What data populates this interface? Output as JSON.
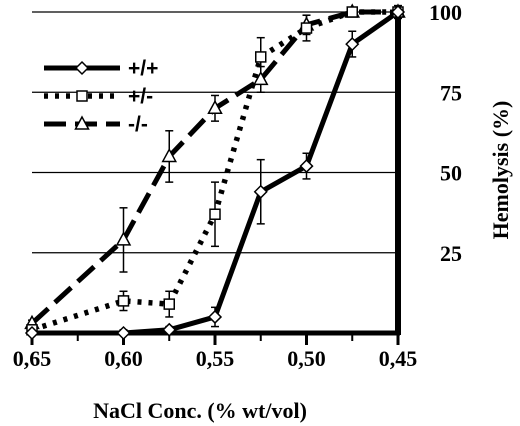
{
  "chart_data": {
    "type": "line",
    "xlabel": "NaCl Conc. (% wt/vol)",
    "ylabel": "Hemolysis (%)",
    "x_ticks": [
      "0,65",
      "0,60",
      "0,55",
      "0,50",
      "0,45"
    ],
    "x_tick_values": [
      0.65,
      0.6,
      0.55,
      0.5,
      0.45
    ],
    "y_ticks": [
      "25",
      "50",
      "75",
      "100"
    ],
    "y_tick_values": [
      25,
      50,
      75,
      100
    ],
    "xlim": [
      0.65,
      0.45
    ],
    "ylim": [
      0,
      100
    ],
    "x_reversed": true,
    "grid": "horizontal",
    "legend_position": "top-left",
    "series": [
      {
        "name": "+/+",
        "line_style": "solid",
        "marker": "diamond",
        "x": [
          0.65,
          0.6,
          0.575,
          0.55,
          0.525,
          0.5,
          0.475,
          0.45
        ],
        "y": [
          0,
          0,
          1,
          5,
          44,
          52,
          90,
          100
        ],
        "error": [
          0,
          1,
          1,
          3,
          10,
          4,
          4,
          2
        ]
      },
      {
        "name": "+/-",
        "line_style": "dotted",
        "marker": "square",
        "x": [
          0.65,
          0.6,
          0.575,
          0.55,
          0.525,
          0.5,
          0.475,
          0.45
        ],
        "y": [
          1,
          10,
          9,
          37,
          86,
          95,
          100,
          100
        ],
        "error": [
          1,
          3,
          4,
          10,
          6,
          4,
          1,
          1
        ]
      },
      {
        "name": "-/-",
        "line_style": "dashed",
        "marker": "triangle",
        "x": [
          0.65,
          0.6,
          0.575,
          0.55,
          0.525,
          0.5,
          0.475,
          0.45
        ],
        "y": [
          3,
          29,
          55,
          70,
          79,
          96,
          100,
          100
        ],
        "error": [
          1,
          10,
          8,
          4,
          4,
          3,
          1,
          1
        ]
      }
    ]
  }
}
